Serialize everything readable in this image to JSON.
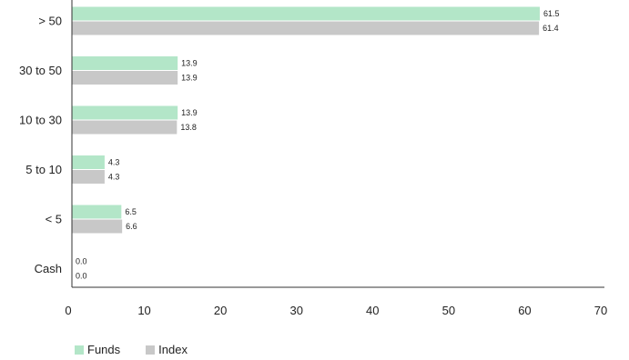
{
  "chart_data": {
    "type": "bar",
    "orientation": "horizontal",
    "categories": [
      "> 50",
      "30 to 50",
      "10 to 30",
      "5 to 10",
      "< 5",
      "Cash"
    ],
    "series": [
      {
        "name": "Funds",
        "color": "#b3e6c8",
        "values": [
          61.5,
          13.9,
          13.9,
          4.3,
          6.5,
          0.0
        ]
      },
      {
        "name": "Index",
        "color": "#c8c8c8",
        "values": [
          61.4,
          13.9,
          13.8,
          4.3,
          6.6,
          0.0
        ]
      }
    ],
    "xlim": [
      0,
      70
    ],
    "xticks": [
      0,
      10,
      20,
      30,
      40,
      50,
      60,
      70
    ],
    "title": "",
    "xlabel": "",
    "ylabel": "",
    "grid": false,
    "legend_position": "bottom-left"
  }
}
